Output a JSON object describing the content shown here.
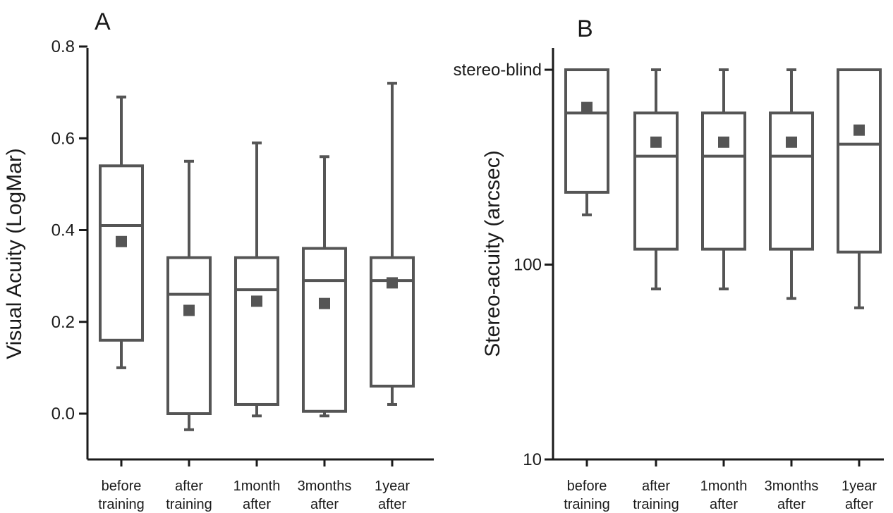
{
  "chart_data": [
    {
      "type": "box",
      "panel_label": "A",
      "ylabel": "Visual Acuity (LogMar)",
      "ylim": [
        -0.1,
        0.8
      ],
      "yscale": "linear",
      "yticks": [
        {
          "value": 0.0,
          "label": "0.0"
        },
        {
          "value": 0.2,
          "label": "0.2"
        },
        {
          "value": 0.4,
          "label": "0.4"
        },
        {
          "value": 0.6,
          "label": "0.6"
        },
        {
          "value": 0.8,
          "label": "0.8"
        }
      ],
      "categories": [
        {
          "line1": "before",
          "line2": "training"
        },
        {
          "line1": "after",
          "line2": "training"
        },
        {
          "line1": "1month",
          "line2": "after"
        },
        {
          "line1": "3months",
          "line2": "after"
        },
        {
          "line1": "1year",
          "line2": "after"
        }
      ],
      "boxes": [
        {
          "whisker_low": 0.1,
          "q1": 0.16,
          "median": 0.41,
          "q3": 0.54,
          "whisker_high": 0.69,
          "mean": 0.375
        },
        {
          "whisker_low": -0.035,
          "q1": 0.0,
          "median": 0.26,
          "q3": 0.34,
          "whisker_high": 0.55,
          "mean": 0.225
        },
        {
          "whisker_low": -0.005,
          "q1": 0.02,
          "median": 0.27,
          "q3": 0.34,
          "whisker_high": 0.59,
          "mean": 0.245
        },
        {
          "whisker_low": -0.005,
          "q1": 0.005,
          "median": 0.29,
          "q3": 0.36,
          "whisker_high": 0.56,
          "mean": 0.24
        },
        {
          "whisker_low": 0.02,
          "q1": 0.06,
          "median": 0.29,
          "q3": 0.34,
          "whisker_high": 0.72,
          "mean": 0.285
        }
      ],
      "colors": {
        "box": "#555555",
        "mean_marker": "#555555",
        "axis": "#1a1a1a"
      }
    },
    {
      "type": "box",
      "panel_label": "B",
      "ylabel": "Stereo-acuity (arcsec)",
      "ylim": [
        10,
        1100
      ],
      "yscale": "log",
      "yticks": [
        {
          "value": 10,
          "label": "10"
        },
        {
          "value": 100,
          "label": "100"
        },
        {
          "value": 1000,
          "label": "stereo-blind"
        }
      ],
      "categories": [
        {
          "line1": "before",
          "line2": "training"
        },
        {
          "line1": "after",
          "line2": "training"
        },
        {
          "line1": "1month",
          "line2": "after"
        },
        {
          "line1": "3months",
          "line2": "after"
        },
        {
          "line1": "1year",
          "line2": "after"
        }
      ],
      "boxes": [
        {
          "whisker_low": 180,
          "q1": 235,
          "median": 600,
          "q3": 1000,
          "whisker_high": 1000,
          "mean": 640
        },
        {
          "whisker_low": 75,
          "q1": 120,
          "median": 360,
          "q3": 600,
          "whisker_high": 1000,
          "mean": 425
        },
        {
          "whisker_low": 75,
          "q1": 120,
          "median": 360,
          "q3": 600,
          "whisker_high": 1000,
          "mean": 425
        },
        {
          "whisker_low": 67,
          "q1": 120,
          "median": 360,
          "q3": 600,
          "whisker_high": 1000,
          "mean": 425
        },
        {
          "whisker_low": 60,
          "q1": 116,
          "median": 415,
          "q3": 1000,
          "whisker_high": 1000,
          "mean": 490
        }
      ],
      "colors": {
        "box": "#555555",
        "mean_marker": "#555555",
        "axis": "#1a1a1a"
      }
    }
  ]
}
